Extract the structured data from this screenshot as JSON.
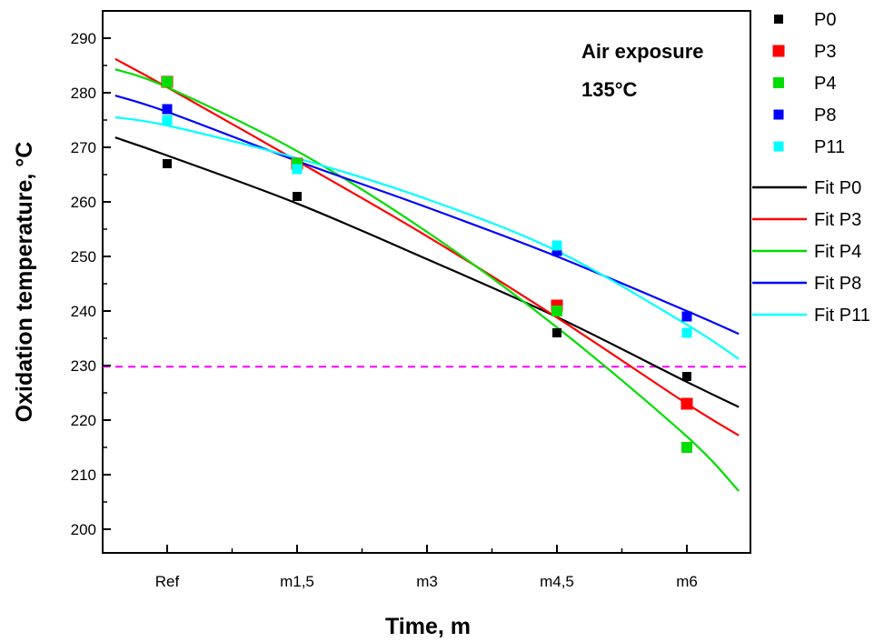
{
  "chart_data": {
    "type": "scatter",
    "xlabel": "Time, m",
    "ylabel": "Oxidation temperature, °C",
    "annotation": [
      "Air exposure",
      "135°C"
    ],
    "categories": [
      "Ref",
      "m1,5",
      "m3",
      "m4,5",
      "m6"
    ],
    "ylim": [
      195,
      292
    ],
    "yticks": [
      200,
      210,
      220,
      230,
      240,
      250,
      260,
      270,
      280,
      290
    ],
    "grid": false,
    "legend_position": "right, outside plot",
    "reference_line": {
      "y": 229.8,
      "color": "#ff00ff",
      "style": "dashed"
    },
    "series": [
      {
        "name": "P0",
        "color": "#000000",
        "x": [
          0,
          1,
          3,
          4
        ],
        "values": [
          267,
          261,
          236,
          228
        ]
      },
      {
        "name": "P3",
        "color": "#ff0000",
        "x": [
          0,
          1,
          3,
          4
        ],
        "values": [
          282,
          267,
          241,
          223
        ]
      },
      {
        "name": "P4",
        "color": "#00dd00",
        "x": [
          0,
          1,
          3,
          4
        ],
        "values": [
          282,
          267,
          240,
          215
        ]
      },
      {
        "name": "P8",
        "color": "#0000ff",
        "x": [
          0,
          1,
          3,
          4
        ],
        "values": [
          277,
          266,
          251,
          239
        ]
      },
      {
        "name": "P11",
        "color": "#00ffff",
        "x": [
          0,
          1,
          3,
          4
        ],
        "values": [
          275,
          266,
          252,
          236
        ]
      }
    ],
    "fits": [
      {
        "name": "Fit P0",
        "color": "#000000",
        "x": [
          -0.4,
          0,
          1,
          2,
          3,
          4,
          4.4
        ],
        "values": [
          271.8,
          268.5,
          259.7,
          249.5,
          238.9,
          227.0,
          222.4
        ]
      },
      {
        "name": "Fit P3",
        "color": "#ff0000",
        "x": [
          -0.4,
          0,
          1,
          2,
          3,
          4,
          4.4
        ],
        "values": [
          286.2,
          281.0,
          267.5,
          253.7,
          238.8,
          223.0,
          217.2
        ]
      },
      {
        "name": "Fit P4",
        "color": "#00dd00",
        "x": [
          -0.4,
          0,
          1,
          2,
          3,
          4,
          4.4
        ],
        "values": [
          284.3,
          281.0,
          269.3,
          254.5,
          237.0,
          217.0,
          207.0
        ]
      },
      {
        "name": "Fit P8",
        "color": "#0000ff",
        "x": [
          -0.4,
          0,
          1,
          2,
          3,
          4,
          4.4
        ],
        "values": [
          279.5,
          276.5,
          267.5,
          259.0,
          250.0,
          240.0,
          235.8
        ]
      },
      {
        "name": "Fit P11",
        "color": "#00ffff",
        "x": [
          -0.4,
          0,
          1,
          2,
          3,
          4,
          4.4
        ],
        "values": [
          275.5,
          274.0,
          268.0,
          260.5,
          251.0,
          237.5,
          231.2
        ]
      }
    ]
  }
}
